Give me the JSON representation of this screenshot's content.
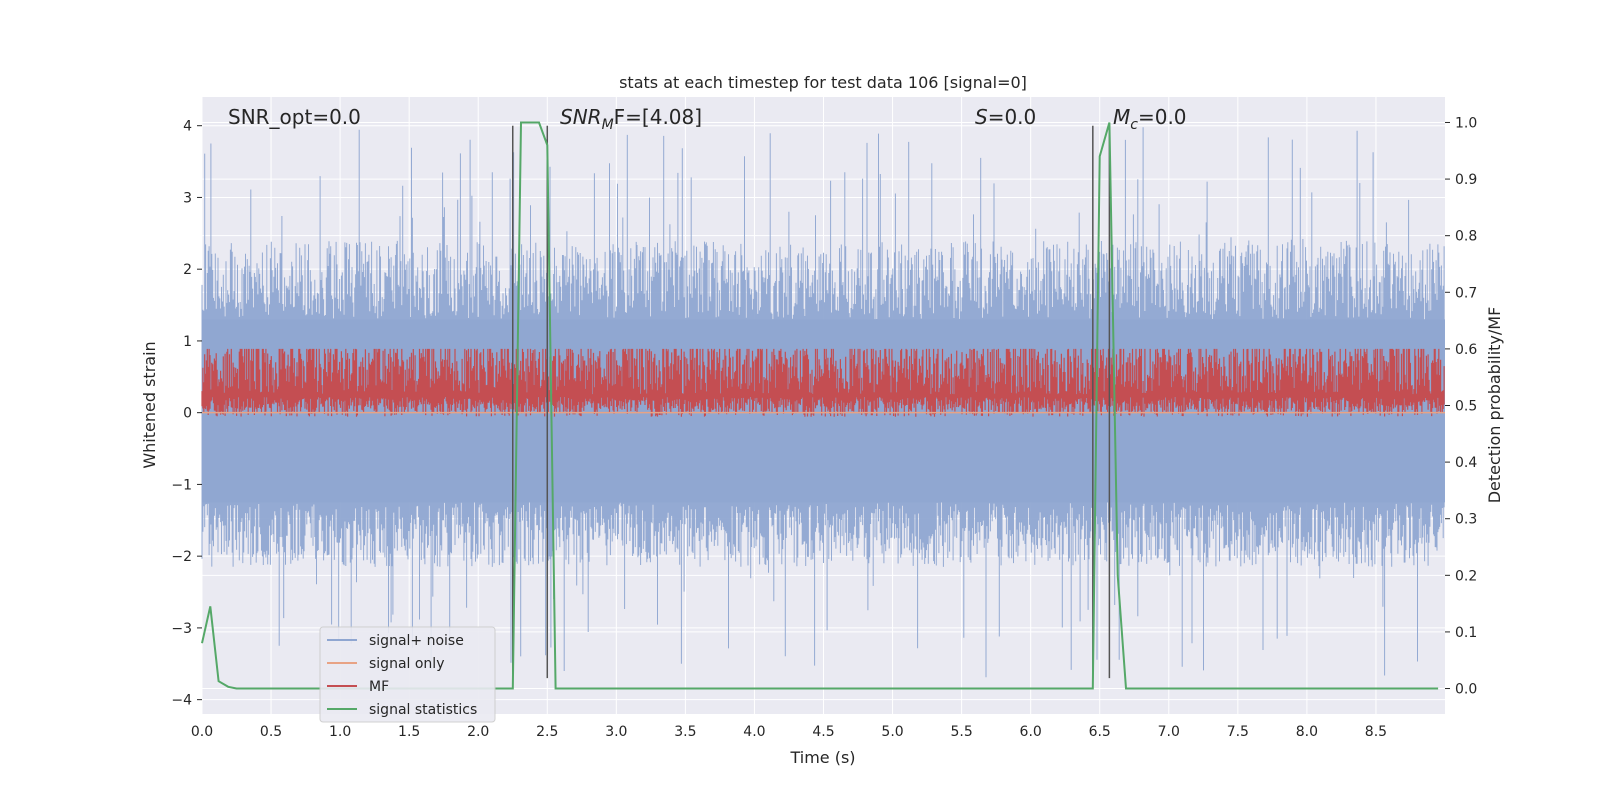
{
  "chart_data": {
    "type": "line",
    "title": "stats at each timestep for test data 106 [signal=0]",
    "xlabel": "Time (s)",
    "ylabel": "Whitened strain",
    "y2label": "Detection probability/MF",
    "xlim": [
      0.0,
      9.0
    ],
    "ylim": [
      -4.2,
      4.4
    ],
    "y2lim": [
      -0.045,
      1.045
    ],
    "xticks": [
      0.0,
      0.5,
      1.0,
      1.5,
      2.0,
      2.5,
      3.0,
      3.5,
      4.0,
      4.5,
      5.0,
      5.5,
      6.0,
      6.5,
      7.0,
      7.5,
      8.0,
      8.5
    ],
    "xtick_labels": [
      "0.0",
      "0.5",
      "1.0",
      "1.5",
      "2.0",
      "2.5",
      "3.0",
      "3.5",
      "4.0",
      "4.5",
      "5.0",
      "5.5",
      "6.0",
      "6.5",
      "7.0",
      "7.5",
      "8.0",
      "8.5"
    ],
    "yticks": [
      -4,
      -3,
      -2,
      -1,
      0,
      1,
      2,
      3,
      4
    ],
    "ytick_labels": [
      "−4",
      "−3",
      "−2",
      "−1",
      "0",
      "1",
      "2",
      "3",
      "4"
    ],
    "y2ticks": [
      0.0,
      0.1,
      0.2,
      0.3,
      0.4,
      0.5,
      0.6,
      0.7,
      0.8,
      0.9,
      1.0
    ],
    "y2tick_labels": [
      "0.0",
      "0.1",
      "0.2",
      "0.3",
      "0.4",
      "0.5",
      "0.6",
      "0.7",
      "0.8",
      "0.9",
      "1.0"
    ],
    "annotations": {
      "snr_opt": "SNR_opt=0.0",
      "snr_mf_sym": "SNR",
      "snr_mf_sub": "M",
      "snr_mf_rest": "F=[4.08]",
      "s_sym": "S",
      "s_rest": "=0.0",
      "mc_sym": "M",
      "mc_sub": "c",
      "mc_rest": "=0.0"
    },
    "vlines_x": [
      2.25,
      2.5,
      6.45,
      6.57
    ],
    "vlines_y": [
      -3.7,
      4.0
    ],
    "noise_envelope": {
      "note": "signal+noise whitened strain, dense ~ [-1.5, 1.7] with spikes up to ~4.0 and down to ~-3.7",
      "upper_typical": 1.7,
      "lower_typical": -1.5,
      "max_spike": 4.0,
      "min_spike": -3.7
    },
    "signal_only_value": 0.0,
    "mf_band": {
      "low": 0.1,
      "high": 0.9,
      "axis": "y2_mapped_to_y"
    },
    "series": [
      {
        "name": "signal statistics",
        "axis": "right",
        "x": [
          0.0,
          0.06,
          0.12,
          0.19,
          0.25,
          2.25,
          2.31,
          2.37,
          2.44,
          2.5,
          2.56,
          6.45,
          6.5,
          6.57,
          6.63,
          6.69,
          6.75,
          8.95
        ],
        "values": [
          0.08,
          0.145,
          0.013,
          0.003,
          0.0,
          0.0,
          1.0,
          1.0,
          1.0,
          0.96,
          0.0,
          0.0,
          0.94,
          1.0,
          0.2,
          0.0,
          0.0,
          0.0
        ]
      }
    ],
    "legend": {
      "position": "lower-left",
      "entries": [
        {
          "label": "signal+ noise",
          "color": "#8fa6d1"
        },
        {
          "label": "signal only",
          "color": "#e8a385"
        },
        {
          "label": "MF",
          "color": "#c44e52"
        },
        {
          "label": "signal statistics",
          "color": "#55a868"
        }
      ]
    },
    "colors": {
      "background": "#eaeaf2",
      "grid": "#ffffff",
      "noise": "#8fa6d1",
      "signal_only": "#e8a385",
      "mf": "#c44e52",
      "stat": "#55a868",
      "vline": "#555555"
    }
  }
}
